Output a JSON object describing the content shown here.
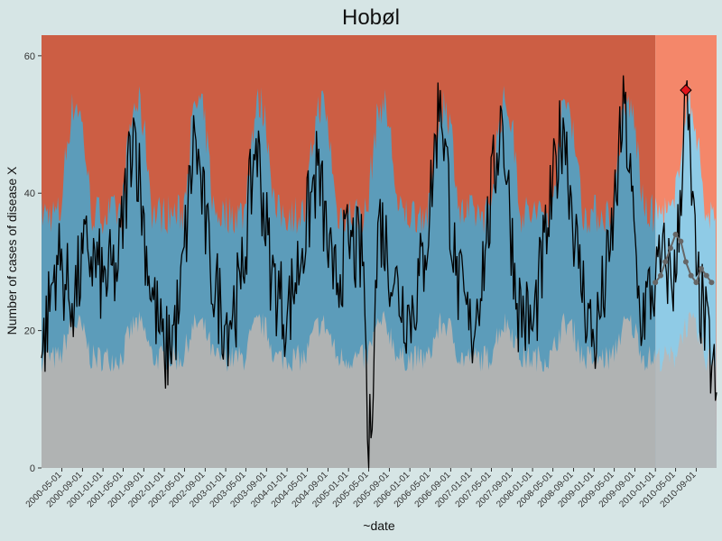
{
  "colors": {
    "background": "#d6e5e5",
    "baseline_area": "#b0b3b3",
    "normal_band": "#5c9cba",
    "alert_area": "#cc5e44",
    "forecast_baseline_area": "#b5babc",
    "forecast_normal_band": "#8fcbe6",
    "forecast_alert_area": "#f4876a",
    "observed_line": "#000000",
    "forecast_points": "#666666",
    "highlight_point": "#e0151b"
  },
  "chart_data": {
    "type": "line",
    "title": "Hobøl",
    "xlabel": "~date",
    "ylabel": "Number of cases of disease X",
    "x_range": [
      "2000-01-01",
      "2010-12-31"
    ],
    "ylim": [
      0,
      63
    ],
    "y_ticks": [
      0,
      20,
      40,
      60
    ],
    "x_ticks": [
      "2000-05-01",
      "2000-09-01",
      "2001-01-01",
      "2001-05-01",
      "2001-09-01",
      "2002-01-01",
      "2002-05-01",
      "2002-09-01",
      "2003-01-01",
      "2003-05-01",
      "2003-09-01",
      "2004-01-01",
      "2004-05-01",
      "2004-09-01",
      "2005-01-01",
      "2005-05-01",
      "2005-09-01",
      "2006-01-01",
      "2006-05-01",
      "2006-09-01",
      "2007-01-01",
      "2007-05-01",
      "2007-09-01",
      "2008-01-01",
      "2008-05-01",
      "2008-09-01",
      "2009-01-01",
      "2009-05-01",
      "2009-09-01",
      "2010-01-01",
      "2010-05-01",
      "2010-09-01"
    ],
    "grid": false,
    "legend": "none",
    "forecast_start": "2010-01-01",
    "highlight": {
      "x": "2010-07-01",
      "y": 55
    },
    "series": [
      {
        "x": [
          "2000-01-01",
          "2000-04-01",
          "2000-07-01",
          "2000-10-01",
          "2001-01-01",
          "2001-04-01",
          "2001-07-01",
          "2001-10-01",
          "2002-01-01",
          "2002-04-01",
          "2002-07-01",
          "2002-10-01",
          "2003-01-01",
          "2003-04-01",
          "2003-07-01",
          "2003-10-01",
          "2004-01-01",
          "2004-04-01",
          "2004-07-01",
          "2004-10-01",
          "2005-01-01",
          "2005-04-01",
          "2005-05-01",
          "2005-07-01",
          "2005-10-01",
          "2006-01-01",
          "2006-04-01",
          "2006-07-01",
          "2006-10-01",
          "2007-01-01",
          "2007-04-01",
          "2007-07-01",
          "2007-10-01",
          "2008-01-01",
          "2008-04-01",
          "2008-07-01",
          "2008-10-01",
          "2009-01-01",
          "2009-04-01",
          "2009-07-01",
          "2009-10-01",
          "2010-01-01",
          "2010-03-01",
          "2010-05-01",
          "2010-07-01",
          "2010-09-01",
          "2010-12-31"
        ],
        "values": [
          16,
          31,
          24,
          32,
          27,
          29,
          51,
          28,
          16,
          23,
          49,
          29,
          21,
          26,
          48,
          28,
          22,
          32,
          44,
          26,
          33,
          30,
          0,
          37,
          27,
          22,
          31,
          55,
          28,
          19,
          33,
          52,
          24,
          20,
          35,
          51,
          29,
          18,
          30,
          53,
          22,
          27,
          30,
          27,
          55,
          28,
          11
        ]
      },
      {
        "x": [
          "2010-01-01",
          "2010-02-01",
          "2010-03-01",
          "2010-04-01",
          "2010-05-01",
          "2010-06-01",
          "2010-07-01",
          "2010-08-01",
          "2010-09-01",
          "2010-10-01",
          "2010-11-01",
          "2010-12-01"
        ],
        "values": [
          27,
          28,
          30,
          32,
          34,
          33,
          30,
          28,
          27,
          29,
          28,
          27
        ]
      }
    ]
  }
}
